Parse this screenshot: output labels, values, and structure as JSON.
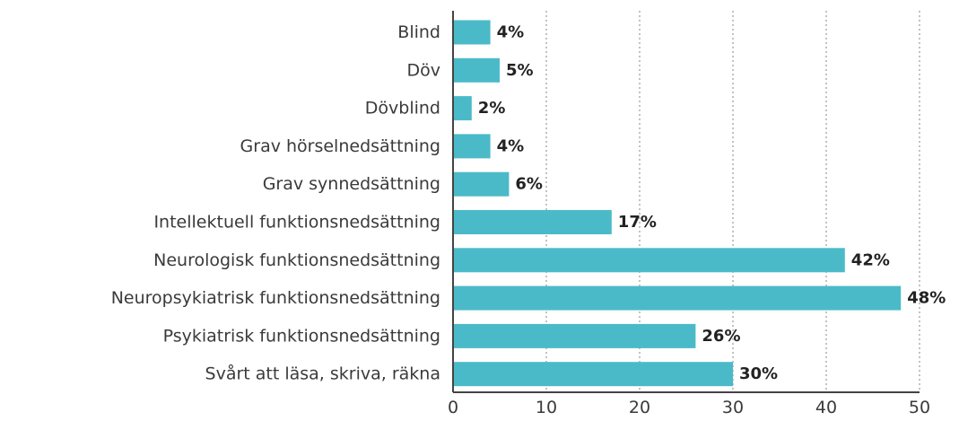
{
  "chart_data": {
    "type": "bar",
    "orientation": "horizontal",
    "categories": [
      "Blind",
      "Döv",
      "Dövblind",
      "Grav hörselnedsättning",
      "Grav synnedsättning",
      "Intellektuell funktionsnedsättning",
      "Neurologisk funktionsnedsättning",
      "Neuropsykiatrisk funktionsnedsättning",
      "Psykiatrisk funktionsnedsättning",
      "Svårt att läsa, skriva, räkna"
    ],
    "values": [
      4,
      5,
      2,
      4,
      6,
      17,
      42,
      48,
      26,
      30
    ],
    "value_labels": [
      "4%",
      "5%",
      "2%",
      "4%",
      "6%",
      "17%",
      "42%",
      "48%",
      "26%",
      "30%"
    ],
    "x_ticks": [
      "0",
      "10",
      "20",
      "30",
      "40",
      "50"
    ],
    "xlim": [
      0,
      50
    ],
    "grid": "vertical dotted",
    "title": "",
    "xlabel": "",
    "ylabel": "",
    "bar_color": "#4bbac8"
  }
}
